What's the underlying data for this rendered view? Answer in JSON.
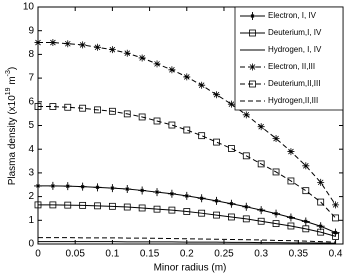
{
  "chart_data": {
    "type": "line",
    "xlabel": "Minor radius (m)",
    "ylabel_parts": [
      "Plasma density (x10",
      "19",
      " m",
      "-3",
      ")"
    ],
    "x": [
      0,
      0.02,
      0.04,
      0.06,
      0.08,
      0.1,
      0.12,
      0.14,
      0.16,
      0.18,
      0.2,
      0.22,
      0.24,
      0.26,
      0.28,
      0.3,
      0.32,
      0.34,
      0.36,
      0.38,
      0.4
    ],
    "xlim": [
      0,
      0.41
    ],
    "xticks": [
      0,
      0.05,
      0.1,
      0.15,
      0.2,
      0.25,
      0.3,
      0.35,
      0.4
    ],
    "ylim": [
      0,
      10
    ],
    "yticks": [
      0,
      1,
      2,
      3,
      4,
      5,
      6,
      7,
      8,
      9,
      10
    ],
    "grid": false,
    "legend": "upper right",
    "series": [
      {
        "name": "Electron,  I, IV",
        "color": "#000000",
        "line_style": "solid",
        "marker": "plus",
        "values": [
          2.45,
          2.45,
          2.44,
          2.42,
          2.39,
          2.36,
          2.32,
          2.26,
          2.19,
          2.12,
          2.03,
          1.93,
          1.82,
          1.7,
          1.57,
          1.43,
          1.28,
          1.12,
          0.95,
          0.75,
          0.48
        ]
      },
      {
        "name": "Deuterium,I, IV",
        "color": "#000000",
        "line_style": "solid",
        "marker": "square",
        "values": [
          1.65,
          1.65,
          1.64,
          1.63,
          1.61,
          1.59,
          1.56,
          1.52,
          1.47,
          1.43,
          1.37,
          1.3,
          1.22,
          1.14,
          1.06,
          0.96,
          0.86,
          0.76,
          0.64,
          0.5,
          0.32
        ]
      },
      {
        "name": "Hydrogen, I, IV",
        "color": "#000000",
        "line_style": "solid",
        "marker": "none",
        "values": [
          0.1,
          0.1,
          0.1,
          0.1,
          0.1,
          0.1,
          0.09,
          0.09,
          0.09,
          0.09,
          0.08,
          0.08,
          0.08,
          0.07,
          0.07,
          0.06,
          0.06,
          0.05,
          0.05,
          0.04,
          0.03
        ]
      },
      {
        "name": "Electron, II,III",
        "color": "#000000",
        "line_style": "dashed",
        "marker": "star",
        "values": [
          8.5,
          8.5,
          8.45,
          8.4,
          8.3,
          8.2,
          8.05,
          7.85,
          7.6,
          7.35,
          7.05,
          6.7,
          6.3,
          5.9,
          5.45,
          4.95,
          4.45,
          3.9,
          3.3,
          2.6,
          1.65
        ]
      },
      {
        "name": "Deuterium,II,III",
        "color": "#000000",
        "line_style": "dashed",
        "marker": "square",
        "values": [
          5.8,
          5.8,
          5.77,
          5.73,
          5.66,
          5.6,
          5.49,
          5.36,
          5.19,
          5.02,
          4.81,
          4.57,
          4.3,
          4.03,
          3.72,
          3.38,
          3.04,
          2.66,
          2.25,
          1.77,
          1.1
        ]
      },
      {
        "name": "Hydrogen,II,III",
        "color": "#000000",
        "line_style": "dashed",
        "marker": "none",
        "values": [
          0.27,
          0.27,
          0.27,
          0.26,
          0.26,
          0.26,
          0.25,
          0.25,
          0.24,
          0.23,
          0.22,
          0.21,
          0.2,
          0.19,
          0.18,
          0.17,
          0.15,
          0.14,
          0.12,
          0.1,
          0.08
        ]
      }
    ]
  }
}
